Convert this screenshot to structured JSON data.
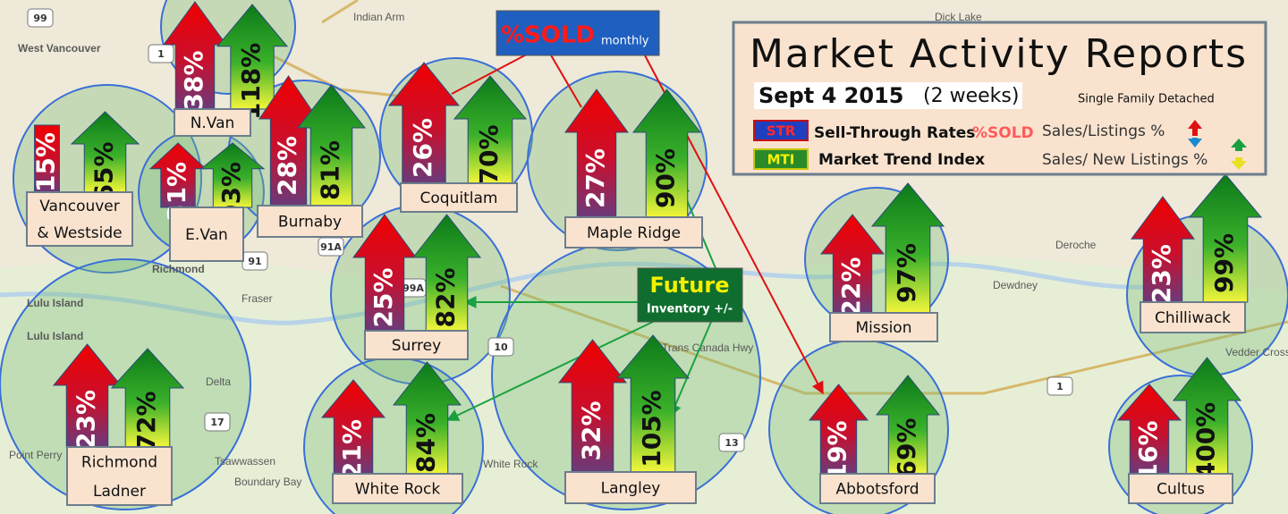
{
  "callouts": {
    "sold": {
      "title": "%SOLD",
      "sub": "monthly"
    },
    "future": {
      "title": "Future",
      "sub": "Inventory +/-"
    }
  },
  "header": {
    "title": "Market Activity Reports",
    "date": "Sept 4 2015",
    "period": "(2 weeks)",
    "scope": "Single Family Detached",
    "legend": [
      {
        "code": "STR",
        "name": "Sell-Through Rates",
        "extra": "%SOLD",
        "formula": "Sales/Listings %"
      },
      {
        "code": "MTI",
        "name": "Market Trend Index",
        "extra": null,
        "formula": "Sales/ New Listings %"
      }
    ]
  },
  "regions": [
    {
      "name": [
        "N.Van"
      ],
      "str": "38%",
      "mti": "118%"
    },
    {
      "name": [
        "Vancouver",
        "& Westside"
      ],
      "str": "15%",
      "mti": "65%"
    },
    {
      "name": [
        "E.Van"
      ],
      "str": "31%",
      "mti": "93%"
    },
    {
      "name": [
        "Burnaby"
      ],
      "str": "28%",
      "mti": "81%"
    },
    {
      "name": [
        "Coquitlam"
      ],
      "str": "26%",
      "mti": "70%"
    },
    {
      "name": [
        "Maple Ridge"
      ],
      "str": "27%",
      "mti": "90%"
    },
    {
      "name": [
        "Surrey"
      ],
      "str": "25%",
      "mti": "82%"
    },
    {
      "name": [
        "Richmond",
        "Ladner"
      ],
      "str": "23%",
      "mti": "72%"
    },
    {
      "name": [
        "White Rock"
      ],
      "str": "21%",
      "mti": "84%"
    },
    {
      "name": [
        "Langley"
      ],
      "str": "32%",
      "mti": "105%"
    },
    {
      "name": [
        "Mission"
      ],
      "str": "22%",
      "mti": "97%"
    },
    {
      "name": [
        "Abbotsford"
      ],
      "str": "19%",
      "mti": "69%"
    },
    {
      "name": [
        "Chilliwack"
      ],
      "str": "23%",
      "mti": "99%"
    },
    {
      "name": [
        "Cultus"
      ],
      "str": "16%",
      "mti": "400%"
    }
  ],
  "map": {
    "labels": [
      "West Vancouver",
      "Richmond",
      "Lulu Island",
      "Lulu Island",
      "Delta",
      "Tsawwassen",
      "Boundary Bay",
      "Point Perry",
      "Dick Lake",
      "Deroche",
      "Dewdney",
      "Vedder Crossing",
      "White Rock",
      "Trans Canada Hwy",
      "Fraser",
      "Indian Arm"
    ],
    "shields": [
      "99",
      "1",
      "91",
      "17",
      "13",
      "10",
      "91A",
      "99A",
      "1"
    ]
  }
}
